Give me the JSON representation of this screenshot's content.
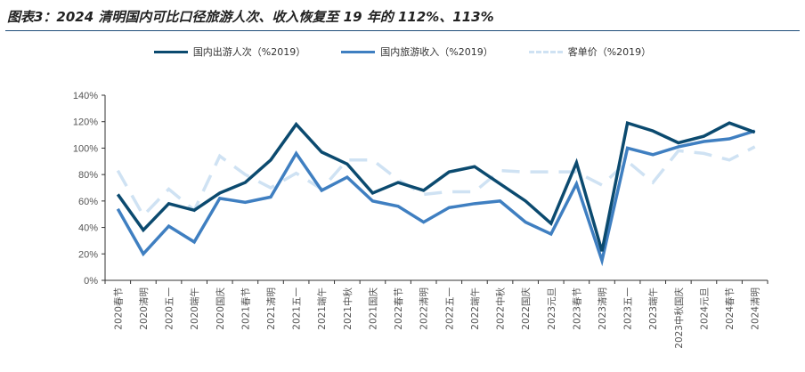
{
  "title": "图表3：2024 清明国内可比口径旅游人次、收入恢复至 19 年的 112%、113%",
  "chart_data": {
    "type": "line",
    "title": "图表3：2024 清明国内可比口径旅游人次、收入恢复至 19 年的 112%、113%",
    "ylim": [
      0,
      140
    ],
    "yticks": [
      "0%",
      "20%",
      "40%",
      "60%",
      "80%",
      "100%",
      "120%",
      "140%"
    ],
    "grid": false,
    "legend_position": "top",
    "categories": [
      "2020春节",
      "2020清明",
      "2020五一",
      "2020端午",
      "2020国庆",
      "2021春节",
      "2021清明",
      "2021五一",
      "2021端午",
      "2021中秋",
      "2021国庆",
      "2022春节",
      "2022清明",
      "2022五一",
      "2022端午",
      "2022中秋",
      "2022国庆",
      "2023元旦",
      "2023春节",
      "2023清明",
      "2023五一",
      "2023端午",
      "2023中秋国庆",
      "2024元旦",
      "2024春节",
      "2024清明"
    ],
    "series": [
      {
        "name": "国内出游人次（%2019）",
        "color": "#0b4a6f",
        "dash": false,
        "values": [
          65,
          38,
          58,
          53,
          66,
          74,
          91,
          118,
          97,
          88,
          66,
          74,
          68,
          82,
          86,
          73,
          60,
          43,
          89,
          22,
          119,
          113,
          104,
          109,
          119,
          112
        ]
      },
      {
        "name": "国内旅游收入（%2019）",
        "color": "#3f7fc1",
        "dash": false,
        "values": [
          54,
          20,
          41,
          29,
          62,
          59,
          63,
          96,
          68,
          78,
          60,
          56,
          44,
          55,
          58,
          60,
          44,
          35,
          73,
          15,
          100,
          95,
          101,
          105,
          107,
          113
        ]
      },
      {
        "name": "客单价（%2019）",
        "color": "#cfe2f3",
        "dash": true,
        "values": [
          83,
          49,
          69,
          53,
          94,
          80,
          70,
          81,
          69,
          91,
          91,
          76,
          65,
          67,
          67,
          83,
          82,
          82,
          82,
          72,
          90,
          74,
          98,
          96,
          91,
          101
        ]
      }
    ]
  }
}
